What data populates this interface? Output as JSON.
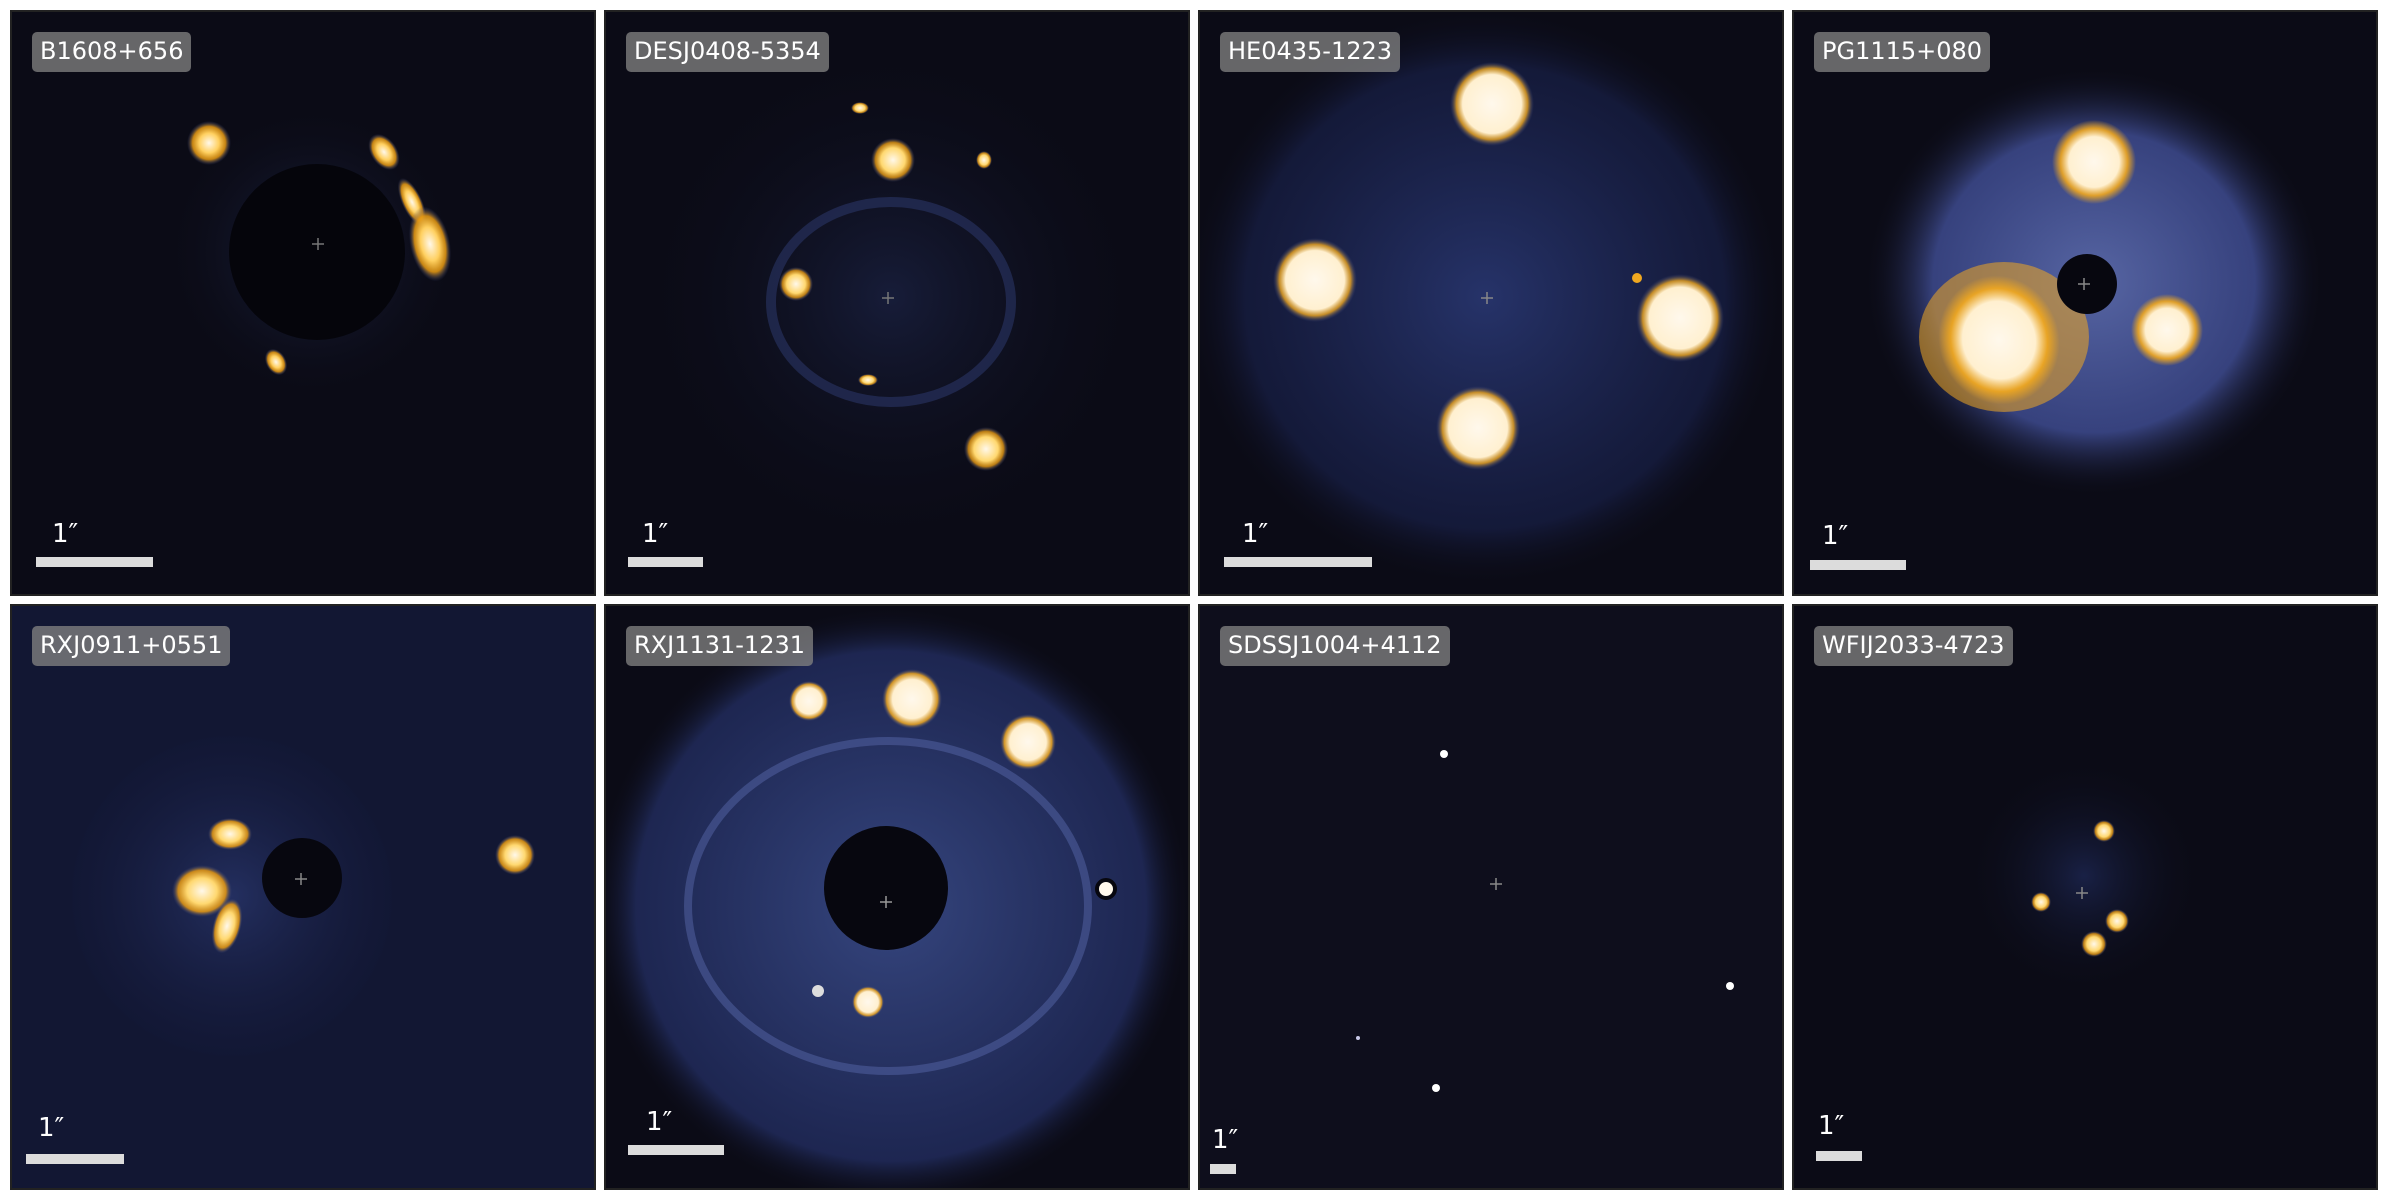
{
  "panels": [
    {
      "name": "B1608+656",
      "scale_label": "1″"
    },
    {
      "name": "DESJ0408-5354",
      "scale_label": "1″"
    },
    {
      "name": "HE0435-1223",
      "scale_label": "1″"
    },
    {
      "name": "PG1115+080",
      "scale_label": "1″"
    },
    {
      "name": "RXJ0911+0551",
      "scale_label": "1″"
    },
    {
      "name": "RXJ1131-1231",
      "scale_label": "1″"
    },
    {
      "name": "SDSSJ1004+4112",
      "scale_label": "1″"
    },
    {
      "name": "WFIJ2033-4723",
      "scale_label": "1″"
    }
  ],
  "colors": {
    "background": "#0b0b16",
    "glow": "#3a4a8a",
    "bright": "#f6a81a",
    "core": "#fff6e6"
  }
}
